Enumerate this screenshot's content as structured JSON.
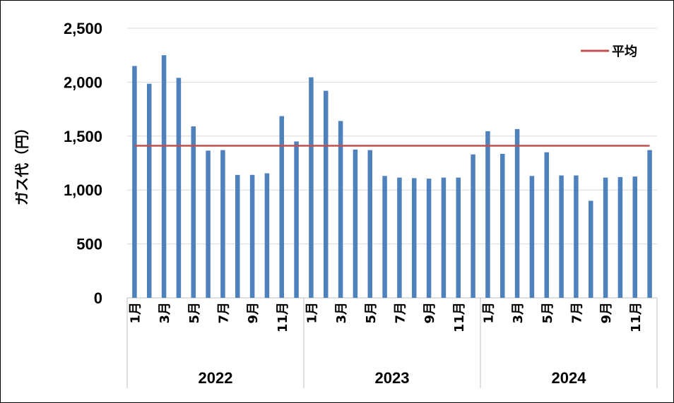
{
  "chart_data": {
    "type": "bar",
    "ylabel": "ガス代（円）",
    "ylim": [
      0,
      2500
    ],
    "yticks": [
      "0",
      "500",
      "1,000",
      "1,500",
      "2,000",
      "2,500"
    ],
    "grid": true,
    "legend_position": "top-right",
    "legend": {
      "label": "平均",
      "color": "#C0504D"
    },
    "bar_color": "#4F81BD",
    "average": 1410,
    "groups": [
      {
        "year": "2022",
        "month_labels": [
          "1月",
          "",
          "3月",
          "",
          "5月",
          "",
          "7月",
          "",
          "9月",
          "",
          "11月",
          ""
        ],
        "values": [
          2150,
          1985,
          2250,
          2040,
          1590,
          1365,
          1370,
          1140,
          1140,
          1155,
          1685,
          1450
        ]
      },
      {
        "year": "2023",
        "month_labels": [
          "1月",
          "",
          "3月",
          "",
          "5月",
          "",
          "7月",
          "",
          "9月",
          "",
          "11月",
          ""
        ],
        "values": [
          2045,
          1920,
          1640,
          1375,
          1370,
          1130,
          1115,
          1110,
          1105,
          1115,
          1115,
          1330
        ]
      },
      {
        "year": "2024",
        "month_labels": [
          "1月",
          "",
          "3月",
          "",
          "5月",
          "",
          "7月",
          "",
          "9月",
          "",
          "11月",
          ""
        ],
        "values": [
          1545,
          1335,
          1565,
          1130,
          1350,
          1135,
          1135,
          900,
          1115,
          1120,
          1125,
          1370
        ]
      }
    ]
  }
}
